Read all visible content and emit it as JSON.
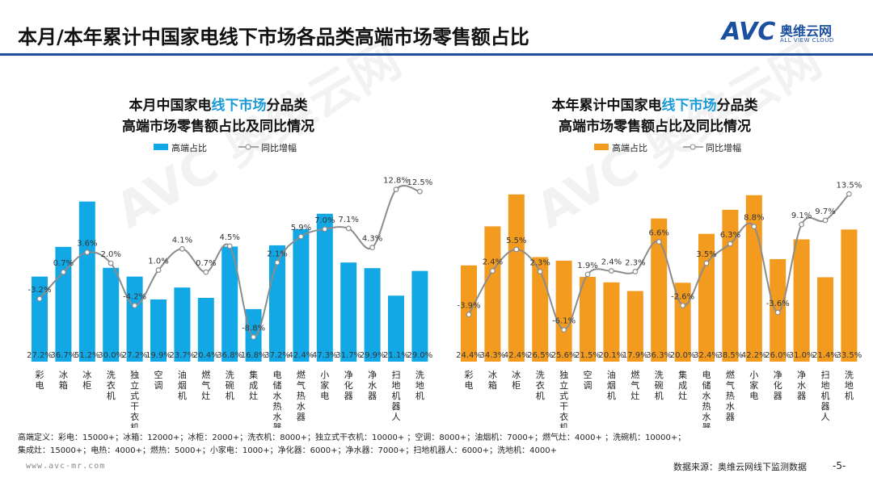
{
  "title": "本月/本年累计中国家电线下市场各品类高端市场零售额占比",
  "logo": {
    "mark": "AVC",
    "cn": "奥维云网",
    "en": "ALL VIEW CLOUD"
  },
  "watermark": "AVC 奥维云网",
  "colors": {
    "left_bar": "#12a8e6",
    "right_bar": "#f29b1f",
    "line": "#8c8c8c",
    "title_rule": "#1f4e9c",
    "highlight": "#1a9ad6"
  },
  "chart_data": [
    {
      "type": "bar",
      "title_pre": "本月中国家电",
      "title_hl": "线下市场",
      "title_post": "分品类",
      "title2": "高端市场零售额占比及同比情况",
      "categories": [
        "彩电",
        "冰箱",
        "冰柜",
        "洗衣机",
        "独立式干衣机",
        "空调",
        "油烟机",
        "燃气灶",
        "洗碗机",
        "集成灶",
        "电储水热水器",
        "燃气热水器",
        "小家电",
        "净化器",
        "净水器",
        "扫地机器人",
        "洗地机"
      ],
      "series": [
        {
          "name": "高端占比",
          "kind": "bar",
          "values": [
            27.2,
            36.7,
            51.2,
            30.0,
            27.2,
            19.9,
            23.7,
            20.4,
            36.8,
            16.8,
            37.2,
            42.4,
            47.3,
            31.7,
            29.9,
            21.1,
            29.0
          ]
        },
        {
          "name": "同比增幅",
          "kind": "line",
          "values": [
            -3.2,
            0.7,
            3.6,
            2.0,
            -4.2,
            1.0,
            4.1,
            0.7,
            4.5,
            -8.8,
            2.1,
            5.9,
            7.0,
            7.1,
            4.3,
            12.8,
            12.5
          ]
        }
      ],
      "ylim": [
        0,
        55.5
      ],
      "y2lim": [
        -12.4,
        13
      ],
      "legend": "top-left"
    },
    {
      "type": "bar",
      "title_pre": "本年累计中国家电",
      "title_hl": "线下市场",
      "title_post": "分品类",
      "title2": "高端市场零售额占比及同比情况",
      "categories": [
        "彩电",
        "冰箱",
        "冰柜",
        "洗衣机",
        "独立式干衣机",
        "空调",
        "油烟机",
        "燃气灶",
        "洗碗机",
        "集成灶",
        "电储水热水器",
        "燃气热水器",
        "小家电",
        "净化器",
        "净水器",
        "扫地机器人",
        "洗地机"
      ],
      "series": [
        {
          "name": "高端占比",
          "kind": "bar",
          "values": [
            24.4,
            34.3,
            42.4,
            26.5,
            25.6,
            21.5,
            20.1,
            17.9,
            36.3,
            20.0,
            32.4,
            38.5,
            42.2,
            26.0,
            31.0,
            21.4,
            33.5
          ]
        },
        {
          "name": "同比增幅",
          "kind": "line",
          "values": [
            -3.9,
            2.4,
            5.5,
            2.3,
            -6.1,
            1.9,
            2.4,
            2.3,
            6.6,
            -2.6,
            3.5,
            6.3,
            8.8,
            -3.6,
            9.1,
            9.7,
            13.5
          ]
        }
      ],
      "ylim": [
        0,
        44
      ],
      "y2lim": [
        -10.7,
        14.35
      ],
      "legend": "top-left"
    }
  ],
  "footnote": {
    "line1": "高端定义：彩电：15000+；冰箱：12000+；冰柜：2000+；洗衣机：8000+；独立式干衣机：10000+ ；空调：8000+；油烟机：7000+；燃气灶：4000+ ；洗碗机：10000+；",
    "line2": "集成灶：15000+；电热：4000+；燃热：5000+；小家电：1000+；净化器：6000+；净水器：7000+；扫地机器人：6000+；洗地机：4000+"
  },
  "url": "www.avc-mr.com",
  "source": "数据来源：奥维云网线下监测数据",
  "page": "-5-"
}
